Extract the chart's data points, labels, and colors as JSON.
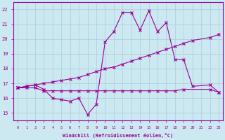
{
  "bg_color": "#cce8f0",
  "line_color": "#990099",
  "grid_color": "#aaccdd",
  "xlabel": "Windchill (Refroidissement éolien,°C)",
  "xlim": [
    -0.5,
    23.5
  ],
  "ylim": [
    14.5,
    22.5
  ],
  "yticks": [
    15,
    16,
    17,
    18,
    19,
    20,
    21,
    22
  ],
  "xticks": [
    0,
    1,
    2,
    3,
    4,
    5,
    6,
    7,
    8,
    9,
    10,
    11,
    12,
    13,
    14,
    15,
    16,
    17,
    18,
    19,
    20,
    21,
    22,
    23
  ],
  "series1_x": [
    0,
    1,
    2,
    3,
    4,
    5,
    6,
    7,
    8,
    9,
    10,
    11,
    12,
    13,
    14,
    15,
    16,
    17,
    18,
    19,
    20,
    22,
    23
  ],
  "series1_y": [
    16.7,
    16.8,
    16.9,
    16.6,
    16.0,
    15.9,
    15.8,
    16.0,
    14.9,
    15.6,
    19.8,
    20.5,
    21.8,
    21.8,
    20.6,
    21.9,
    20.5,
    21.1,
    18.6,
    18.6,
    16.8,
    16.9,
    16.4
  ],
  "series2_x": [
    0,
    1,
    2,
    3,
    4,
    5,
    6,
    7,
    8,
    9,
    10,
    11,
    12,
    13,
    14,
    15,
    16,
    17,
    18,
    19,
    20,
    22,
    23
  ],
  "series2_y": [
    16.7,
    16.8,
    16.9,
    17.0,
    17.1,
    17.2,
    17.3,
    17.4,
    17.6,
    17.8,
    18.0,
    18.1,
    18.3,
    18.5,
    18.7,
    18.9,
    19.1,
    19.3,
    19.5,
    19.7,
    19.9,
    20.1,
    20.3
  ],
  "series3_x": [
    0,
    1,
    2,
    3,
    4,
    5,
    6,
    7,
    8,
    9,
    10,
    11,
    12,
    13,
    14,
    15,
    16,
    17,
    18,
    19,
    22,
    23
  ],
  "series3_y": [
    16.7,
    16.7,
    16.7,
    16.5,
    16.5,
    16.5,
    16.5,
    16.5,
    16.5,
    16.5,
    16.5,
    16.5,
    16.5,
    16.5,
    16.5,
    16.5,
    16.5,
    16.5,
    16.5,
    16.6,
    16.6,
    16.4
  ]
}
